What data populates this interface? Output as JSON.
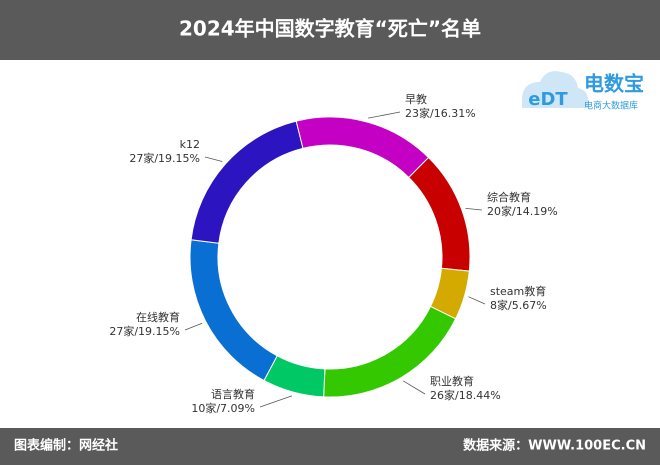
{
  "chart_data": {
    "type": "donut",
    "title": "2024年中国数字教育“死亡”名单",
    "categories": [
      "早教",
      "综合教育",
      "steam教育",
      "职业教育",
      "语言教育",
      "在线教育",
      "k12"
    ],
    "values": [
      23,
      20,
      8,
      26,
      10,
      27,
      27
    ],
    "value_labels": [
      "23家/16.31%",
      "20家/14.19%",
      "8家/5.67%",
      "26家/18.44%",
      "10家/7.09%",
      "27家/19.15%",
      "27家/19.15%"
    ],
    "colors": [
      "#c400c4",
      "#c80000",
      "#d4aa00",
      "#33c800",
      "#00c864",
      "#0a6fd2",
      "#2c14c0"
    ]
  },
  "logo": {
    "mark": "eDT",
    "name": "电数宝",
    "subtitle": "电商大数据库"
  },
  "footer": {
    "left": "图表编制：网经社",
    "right": "数据来源：WWW.100EC.CN"
  }
}
